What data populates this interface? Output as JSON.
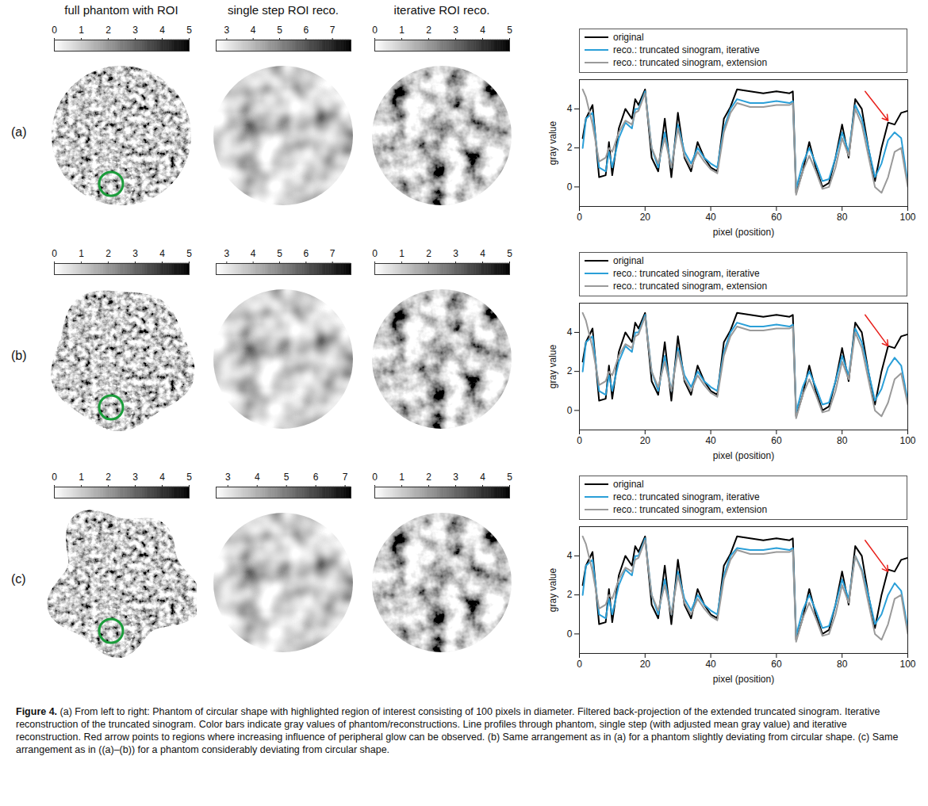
{
  "column_headers": [
    "full phantom with ROI",
    "single step ROI reco.",
    "iterative ROI reco."
  ],
  "row_labels": [
    "(a)",
    "(b)",
    "(c)"
  ],
  "colorbars": [
    [
      {
        "lim": [
          0,
          5
        ],
        "ticks": [
          0,
          1,
          2,
          3,
          4,
          5
        ]
      },
      {
        "lim": [
          2.6,
          7.7
        ],
        "ticks": [
          3,
          4,
          5,
          6,
          7
        ]
      },
      {
        "lim": [
          0,
          5
        ],
        "ticks": [
          0,
          1,
          2,
          3,
          4,
          5
        ]
      }
    ],
    [
      {
        "lim": [
          0,
          5
        ],
        "ticks": [
          0,
          1,
          2,
          3,
          4,
          5
        ]
      },
      {
        "lim": [
          2.6,
          7.7
        ],
        "ticks": [
          3,
          4,
          5,
          6,
          7
        ]
      },
      {
        "lim": [
          0,
          5
        ],
        "ticks": [
          0,
          1,
          2,
          3,
          4,
          5
        ]
      }
    ],
    [
      {
        "lim": [
          0,
          5
        ],
        "ticks": [
          0,
          1,
          2,
          3,
          4,
          5
        ]
      },
      {
        "lim": [
          2.6,
          7.2
        ],
        "ticks": [
          3,
          4,
          5,
          6,
          7
        ]
      },
      {
        "lim": [
          0,
          5
        ],
        "ticks": [
          0,
          1,
          2,
          3,
          4,
          5
        ]
      }
    ]
  ],
  "chart_data": [
    {
      "type": "line",
      "xlabel": "pixel (position)",
      "ylabel": "gray value",
      "xlim": [
        0,
        100
      ],
      "xticks": [
        0,
        20,
        40,
        60,
        80,
        100
      ],
      "ylim": [
        -1,
        5.5
      ],
      "yticks": [
        0,
        2,
        4
      ],
      "legend": "top",
      "x": [
        1,
        2,
        4,
        6,
        8,
        9,
        10,
        12,
        14,
        16,
        17,
        18,
        20,
        22,
        24,
        26,
        28,
        30,
        32,
        34,
        36,
        38,
        40,
        42,
        44,
        46,
        48,
        52,
        56,
        60,
        64,
        65,
        66,
        68,
        70,
        72,
        74,
        76,
        78,
        80,
        82,
        84,
        86,
        88,
        90,
        92,
        94,
        96,
        98,
        100
      ],
      "series": [
        {
          "name": "original",
          "color": "#000000",
          "values": [
            2.5,
            3.5,
            4.2,
            0.5,
            0.6,
            2.3,
            0.6,
            3.0,
            4.0,
            3.5,
            4.5,
            4.2,
            5.0,
            1.5,
            0.8,
            3.5,
            0.5,
            3.8,
            1.5,
            0.8,
            2.3,
            1.5,
            1.0,
            0.8,
            3.5,
            4.1,
            5.0,
            4.9,
            4.8,
            4.9,
            4.8,
            4.9,
            -0.3,
            0.8,
            2.3,
            1.0,
            0.0,
            0.2,
            1.5,
            3.2,
            1.5,
            4.5,
            4.0,
            2.0,
            0.3,
            2.0,
            3.3,
            3.2,
            3.8,
            3.9
          ]
        },
        {
          "name": "reco.: truncated sinogram, iterative",
          "color": "#2a9fd8",
          "values": [
            2.0,
            3.5,
            3.8,
            1.0,
            0.8,
            1.8,
            1.0,
            2.5,
            3.3,
            3.0,
            4.0,
            4.0,
            4.9,
            2.0,
            1.0,
            2.8,
            1.0,
            3.2,
            1.8,
            1.2,
            2.0,
            1.5,
            1.2,
            1.0,
            3.0,
            4.0,
            4.5,
            4.3,
            4.3,
            4.4,
            4.3,
            4.4,
            -0.1,
            1.2,
            2.0,
            1.2,
            0.3,
            0.4,
            1.5,
            2.8,
            1.8,
            4.2,
            3.5,
            2.0,
            0.5,
            1.2,
            2.4,
            2.8,
            2.5,
            0.2
          ]
        },
        {
          "name": "reco.: truncated sinogram, extension",
          "color": "#9a9a9a",
          "values": [
            5.0,
            4.6,
            3.2,
            1.3,
            1.5,
            2.0,
            1.8,
            2.8,
            3.4,
            3.2,
            3.8,
            3.9,
            4.8,
            2.0,
            1.2,
            2.5,
            1.0,
            3.0,
            1.6,
            1.0,
            1.8,
            1.3,
            0.9,
            0.7,
            2.8,
            3.8,
            4.3,
            4.1,
            4.1,
            4.2,
            4.2,
            4.3,
            -0.4,
            0.8,
            1.6,
            0.8,
            -0.1,
            0.0,
            1.0,
            2.5,
            1.6,
            4.0,
            3.2,
            1.6,
            0.0,
            -0.3,
            0.5,
            1.8,
            2.0,
            0.0
          ]
        }
      ],
      "annotations": [
        {
          "x1": 87,
          "y1": 4.9,
          "x2": 94,
          "y2": 3.4,
          "color": "#e8211c"
        }
      ]
    },
    {
      "type": "line",
      "xlabel": "pixel (position)",
      "ylabel": "gray value",
      "xlim": [
        0,
        100
      ],
      "xticks": [
        0,
        20,
        40,
        60,
        80,
        100
      ],
      "ylim": [
        -1,
        5.5
      ],
      "yticks": [
        0,
        2,
        4
      ],
      "legend": "top",
      "x": [
        1,
        2,
        4,
        6,
        8,
        9,
        10,
        12,
        14,
        16,
        17,
        18,
        20,
        22,
        24,
        26,
        28,
        30,
        32,
        34,
        36,
        38,
        40,
        42,
        44,
        46,
        48,
        52,
        56,
        60,
        64,
        65,
        66,
        68,
        70,
        72,
        74,
        76,
        78,
        80,
        82,
        84,
        86,
        88,
        90,
        92,
        94,
        96,
        98,
        100
      ],
      "series": [
        {
          "name": "original",
          "color": "#000000",
          "values": [
            2.5,
            3.5,
            4.2,
            0.5,
            0.6,
            2.3,
            0.6,
            3.0,
            4.0,
            3.5,
            4.5,
            4.2,
            5.0,
            1.5,
            0.8,
            3.5,
            0.5,
            3.8,
            1.5,
            0.8,
            2.3,
            1.5,
            1.0,
            0.8,
            3.5,
            4.1,
            5.0,
            4.9,
            4.8,
            4.9,
            4.8,
            4.9,
            -0.3,
            0.8,
            2.3,
            1.0,
            0.0,
            0.2,
            1.5,
            3.2,
            1.5,
            4.5,
            4.0,
            2.0,
            0.3,
            2.0,
            3.3,
            3.2,
            3.8,
            3.9
          ]
        },
        {
          "name": "reco.: truncated sinogram, iterative",
          "color": "#2a9fd8",
          "values": [
            2.0,
            3.5,
            3.8,
            1.0,
            0.8,
            1.8,
            1.0,
            2.5,
            3.3,
            3.0,
            4.0,
            4.0,
            4.9,
            2.0,
            1.0,
            2.8,
            1.0,
            3.2,
            1.8,
            1.2,
            2.0,
            1.5,
            1.2,
            1.0,
            3.0,
            4.0,
            4.5,
            4.3,
            4.3,
            4.4,
            4.3,
            4.4,
            -0.1,
            1.2,
            2.0,
            1.2,
            0.3,
            0.4,
            1.5,
            2.8,
            1.8,
            4.2,
            3.5,
            2.0,
            0.5,
            1.1,
            2.2,
            2.7,
            2.3,
            0.5
          ]
        },
        {
          "name": "reco.: truncated sinogram, extension",
          "color": "#9a9a9a",
          "values": [
            5.0,
            4.6,
            3.2,
            1.3,
            1.5,
            2.0,
            1.8,
            2.8,
            3.4,
            3.2,
            3.8,
            3.9,
            4.8,
            2.0,
            1.2,
            2.5,
            1.0,
            3.0,
            1.6,
            1.0,
            1.8,
            1.3,
            0.9,
            0.7,
            2.8,
            3.8,
            4.3,
            4.1,
            4.1,
            4.2,
            4.2,
            4.3,
            -0.4,
            0.8,
            1.6,
            0.8,
            -0.1,
            0.0,
            1.0,
            2.5,
            1.6,
            4.0,
            3.2,
            1.6,
            0.0,
            -0.3,
            0.4,
            1.6,
            1.9,
            0.3
          ]
        }
      ],
      "annotations": [
        {
          "x1": 87,
          "y1": 4.9,
          "x2": 94,
          "y2": 3.3,
          "color": "#e8211c"
        }
      ]
    },
    {
      "type": "line",
      "xlabel": "pixel (position)",
      "ylabel": "gray value",
      "xlim": [
        0,
        100
      ],
      "xticks": [
        0,
        20,
        40,
        60,
        80,
        100
      ],
      "ylim": [
        -1,
        5.5
      ],
      "yticks": [
        0,
        2,
        4
      ],
      "legend": "top",
      "x": [
        1,
        2,
        4,
        6,
        8,
        9,
        10,
        12,
        14,
        16,
        17,
        18,
        20,
        22,
        24,
        26,
        28,
        30,
        32,
        34,
        36,
        38,
        40,
        42,
        44,
        46,
        48,
        52,
        56,
        60,
        64,
        65,
        66,
        68,
        70,
        72,
        74,
        76,
        78,
        80,
        82,
        84,
        86,
        88,
        90,
        92,
        94,
        96,
        98,
        100
      ],
      "series": [
        {
          "name": "original",
          "color": "#000000",
          "values": [
            2.5,
            3.5,
            4.2,
            0.5,
            0.6,
            2.3,
            0.6,
            3.0,
            4.0,
            3.5,
            4.5,
            4.2,
            5.0,
            1.5,
            0.8,
            3.5,
            0.5,
            3.8,
            1.5,
            0.8,
            2.3,
            1.5,
            1.0,
            0.8,
            3.5,
            4.1,
            5.0,
            4.9,
            4.8,
            4.9,
            4.8,
            4.9,
            -0.3,
            0.8,
            2.3,
            1.0,
            0.0,
            0.2,
            1.5,
            3.2,
            1.5,
            4.5,
            4.0,
            2.0,
            0.3,
            2.0,
            3.3,
            3.2,
            3.8,
            3.9
          ]
        },
        {
          "name": "reco.: truncated sinogram, iterative",
          "color": "#2a9fd8",
          "values": [
            2.0,
            3.5,
            3.8,
            1.0,
            0.8,
            1.8,
            1.0,
            2.5,
            3.3,
            3.0,
            4.0,
            4.0,
            4.9,
            2.0,
            1.0,
            2.8,
            1.0,
            3.2,
            1.8,
            1.2,
            2.0,
            1.5,
            1.2,
            1.0,
            3.0,
            4.0,
            4.4,
            4.3,
            4.3,
            4.4,
            4.3,
            4.4,
            -0.1,
            1.2,
            2.0,
            1.2,
            0.3,
            0.4,
            1.5,
            2.8,
            1.8,
            4.0,
            3.3,
            2.0,
            0.5,
            1.0,
            2.0,
            2.6,
            2.2,
            0.3
          ]
        },
        {
          "name": "reco.: truncated sinogram, extension",
          "color": "#9a9a9a",
          "values": [
            5.0,
            4.6,
            3.2,
            1.3,
            1.5,
            2.0,
            1.8,
            2.8,
            3.4,
            3.2,
            3.8,
            3.9,
            4.8,
            2.0,
            1.2,
            2.5,
            1.0,
            3.0,
            1.6,
            1.0,
            1.8,
            1.3,
            0.9,
            0.7,
            2.8,
            3.8,
            4.3,
            4.1,
            4.1,
            4.2,
            4.2,
            4.3,
            -0.4,
            0.8,
            1.6,
            0.8,
            -0.1,
            0.0,
            1.0,
            2.5,
            1.6,
            4.0,
            3.2,
            1.6,
            0.0,
            -0.3,
            0.5,
            1.8,
            2.0,
            0.0
          ]
        }
      ],
      "annotations": [
        {
          "x1": 87,
          "y1": 4.8,
          "x2": 94,
          "y2": 3.2,
          "color": "#e8211c"
        }
      ]
    }
  ],
  "caption": {
    "label": "Figure 4.",
    "text": "(a) From left to right: Phantom of circular shape with highlighted region of interest consisting of 100 pixels in diameter. Filtered back-projection of the extended truncated sinogram. Iterative reconstruction of the truncated sinogram. Color bars indicate gray values of phantom/reconstructions. Line profiles through phantom, single step (with adjusted mean gray value) and iterative reconstruction. Red arrow points to regions where increasing influence of peripheral glow can be observed. (b) Same arrangement as in (a) for a phantom slightly deviating from circular shape. (c) Same arrangement as in ((a)–(b)) for a phantom considerably deviating from circular shape."
  }
}
